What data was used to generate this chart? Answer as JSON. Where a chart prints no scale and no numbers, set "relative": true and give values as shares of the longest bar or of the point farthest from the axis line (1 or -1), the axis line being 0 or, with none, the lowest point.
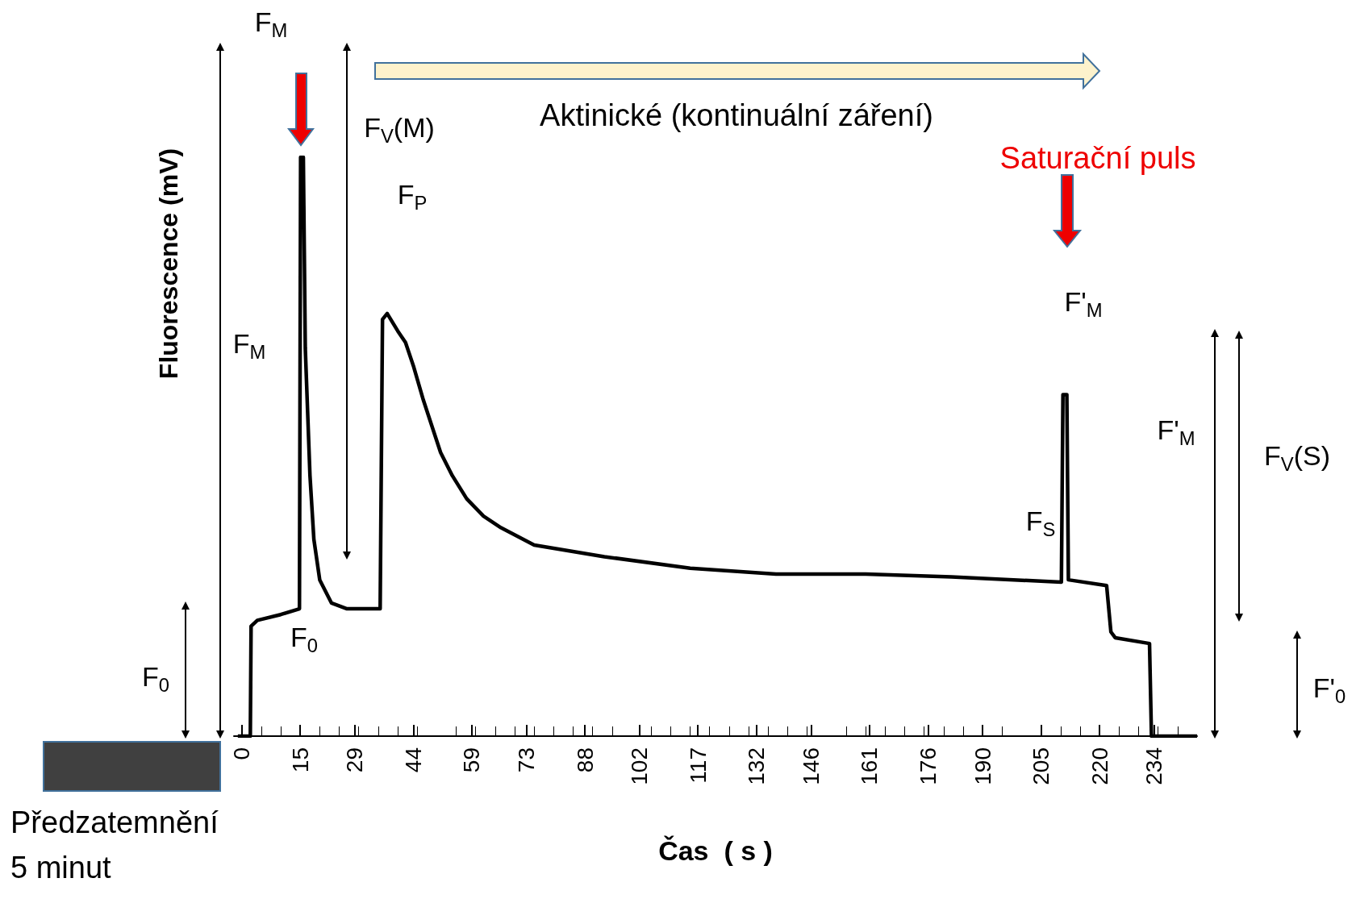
{
  "chart_data": {
    "type": "line",
    "relative": true,
    "xlabel": "Čas  ( s )",
    "ylabel": "Fluorescence (mV)",
    "x": [
      -1,
      2.2,
      2.4,
      4,
      10,
      14.8,
      15.1,
      15.8,
      16.3,
      17.5,
      18.5,
      20,
      23,
      27,
      35.5,
      36.1,
      37.3,
      40,
      42,
      44,
      46.6,
      51,
      54,
      57.7,
      62,
      66.5,
      75,
      93,
      115,
      137,
      160,
      182,
      210.2,
      210.6,
      211.6,
      212,
      221.8,
      222.9,
      224,
      232.8,
      233.3,
      245
    ],
    "series": [
      {
        "color": "#000000",
        "values": [
          0,
          0,
          0.19,
          0.2,
          0.21,
          0.22,
          1,
          1,
          0.67,
          0.45,
          0.34,
          0.27,
          0.23,
          0.22,
          0.22,
          0.72,
          0.73,
          0.7,
          0.68,
          0.64,
          0.58,
          0.49,
          0.45,
          0.41,
          0.38,
          0.36,
          0.33,
          0.31,
          0.29,
          0.28,
          0.28,
          0.275,
          0.266,
          0.59,
          0.59,
          0.27,
          0.26,
          0.18,
          0.17,
          0.16,
          0,
          0
        ]
      }
    ],
    "xlim": [
      -2,
      245
    ],
    "xticks": [
      0,
      15,
      29,
      44,
      59,
      73,
      88,
      102,
      117,
      132,
      146,
      161,
      176,
      190,
      205,
      220,
      234
    ],
    "grid": false,
    "marker": "none",
    "line_style": "solid",
    "annotations": [
      "F$_{M}$",
      "F$_{V}$(M)",
      "F$_{P}$",
      "F$_{M}$",
      "F$_{0}$",
      "F$_{0}$",
      "Aktinické (kontinuální záření)",
      "Saturační puls",
      "F'$_{M}$",
      "F$_{S}$",
      "F'$_{M}$",
      "F$_{V}$(S)",
      "F'$_{0}$",
      "Předzatemnění\n5 minut"
    ]
  }
}
